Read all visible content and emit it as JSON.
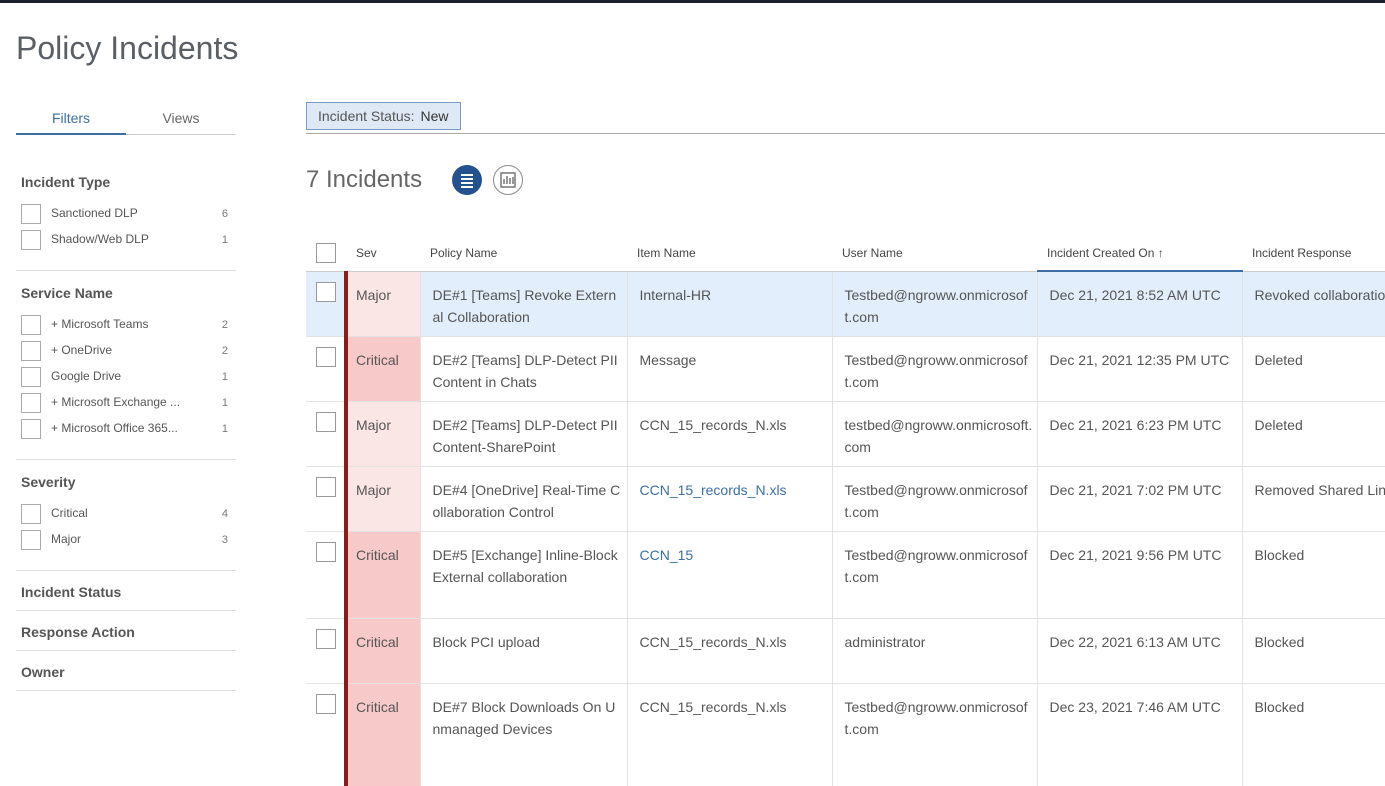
{
  "header": {
    "title": "Policy Incidents"
  },
  "tabs": [
    "Filters",
    "Views"
  ],
  "filters": [
    {
      "title": "Incident Type",
      "options": [
        {
          "label": "Sanctioned DLP",
          "count": 6
        },
        {
          "label": "Shadow/Web DLP",
          "count": 1
        }
      ]
    },
    {
      "title": "Service Name",
      "options": [
        {
          "label": "+ Microsoft Teams",
          "count": 2
        },
        {
          "label": "+ OneDrive",
          "count": 2
        },
        {
          "label": "Google Drive",
          "count": 1
        },
        {
          "label": "+ Microsoft Exchange ...",
          "count": 1
        },
        {
          "label": "+ Microsoft Office 365...",
          "count": 1
        }
      ]
    },
    {
      "title": "Severity",
      "options": [
        {
          "label": "Critical",
          "count": 4
        },
        {
          "label": "Major",
          "count": 3
        }
      ]
    }
  ],
  "collapsed_filters": [
    "Incident Status",
    "Response Action",
    "Owner"
  ],
  "filter_chip": {
    "label": "Incident Status:",
    "value": "New"
  },
  "count_label": "7 Incidents",
  "table": {
    "columns": [
      "Sev",
      "Policy Name",
      "Item Name",
      "User Name",
      "Incident Created On",
      "Incident Response"
    ],
    "rows": [
      {
        "cells": [
          "Major",
          "DE#1 [Teams] Revoke External Collaboration",
          "Internal-HR",
          "Testbed@ngroww.onmicrosoft.com",
          "Dec 21, 2021 8:52 AM UTC",
          "Revoked collaboratio"
        ],
        "selected": true
      },
      {
        "cells": [
          "Critical",
          "DE#2 [Teams] DLP-Detect PII Content in Chats",
          "Message",
          "Testbed@ngroww.onmicrosoft.com",
          "Dec 21, 2021 12:35 PM UTC",
          "Deleted"
        ]
      },
      {
        "cells": [
          "Major",
          "DE#2 [Teams] DLP-Detect PII Content-SharePoint",
          "CCN_15_records_N.xls",
          "testbed@ngroww.onmicrosoft.com",
          "Dec 21, 2021 6:23 PM UTC",
          "Deleted"
        ]
      },
      {
        "cells": [
          "Major",
          "DE#4 [OneDrive] Real-Time Collaboration Control",
          "CCN_15_records_N.xls",
          "Testbed@ngroww.onmicrosoft.com",
          "Dec 21, 2021 7:02 PM UTC",
          "Removed Shared Lin"
        ],
        "item_is_link": true
      },
      {
        "cells": [
          "Critical",
          "DE#5 [Exchange] Inline-Block External collaboration",
          "CCN_15",
          "Testbed@ngroww.onmicrosoft.com",
          "Dec 21, 2021 9:56 PM UTC",
          "Blocked"
        ],
        "item_is_link": true
      },
      {
        "cells": [
          "Critical",
          "Block PCI upload",
          "CCN_15_records_N.xls",
          "administrator",
          "Dec 22, 2021 6:13 AM UTC",
          "Blocked"
        ]
      },
      {
        "cells": [
          "Critical",
          "DE#7 Block Downloads On Unmanaged Devices",
          "CCN_15_records_N.xls",
          "Testbed@ngroww.onmicrosoft.com",
          "Dec 23, 2021 7:46 AM UTC",
          "Blocked"
        ]
      }
    ]
  }
}
